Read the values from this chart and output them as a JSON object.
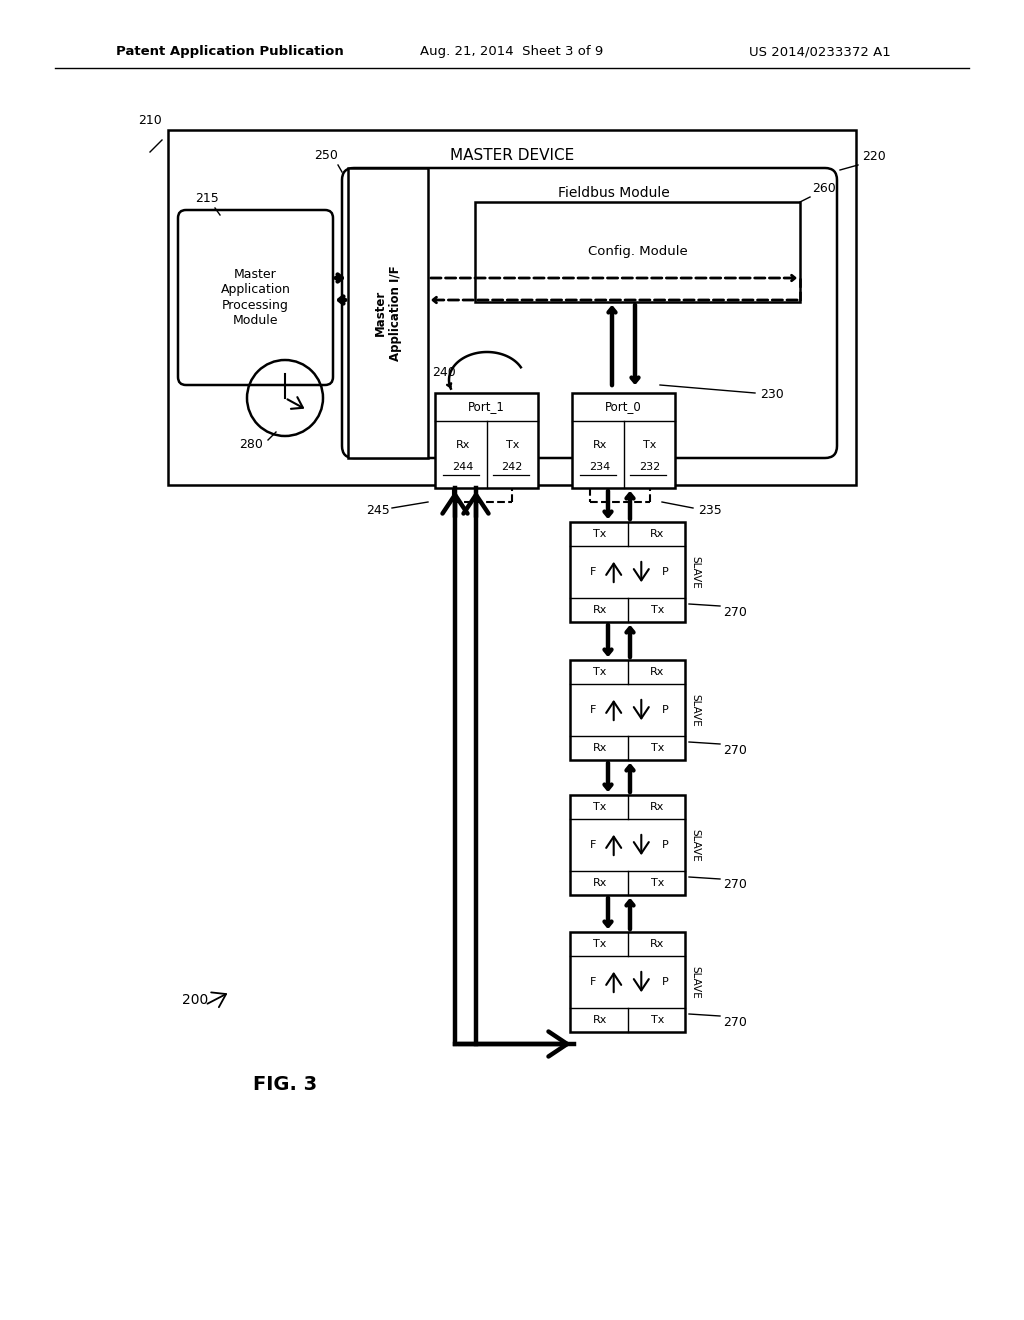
{
  "bg_color": "#ffffff",
  "header_left": "Patent Application Publication",
  "header_center": "Aug. 21, 2014  Sheet 3 of 9",
  "header_right": "US 2014/0233372 A1",
  "fig_label": "FIG. 3",
  "fig_number": "200",
  "master_device_label": "MASTER DEVICE",
  "fieldbus_label": "Fieldbus Module",
  "config_label": "Config. Module",
  "master_app_label": "Master\nApplication\nProcessing\nModule",
  "master_if_label": "Master\nApplication I/F",
  "port1_label": "Port_1",
  "port0_label": "Port_0"
}
